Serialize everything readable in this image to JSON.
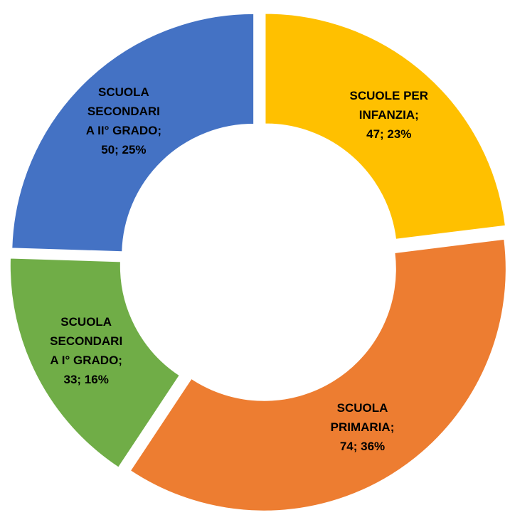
{
  "chart_data": {
    "type": "donut",
    "values": [
      47,
      74,
      33,
      50
    ],
    "value_labels": [
      [
        "SCUOLE PER",
        "INFANZIA;",
        "47; 23%"
      ],
      [
        "SCUOLA",
        "PRIMARIA;",
        "74; 36%"
      ],
      [
        "SCUOLA",
        "SECONDARI",
        "A I° GRADO;",
        "33; 16%"
      ],
      [
        "SCUOLA",
        "SECONDARI",
        "A II° GRADO;",
        "50; 25%"
      ]
    ],
    "colors": [
      "#FFC000",
      "#ED7D31",
      "#70AD47",
      "#4472C4"
    ]
  }
}
